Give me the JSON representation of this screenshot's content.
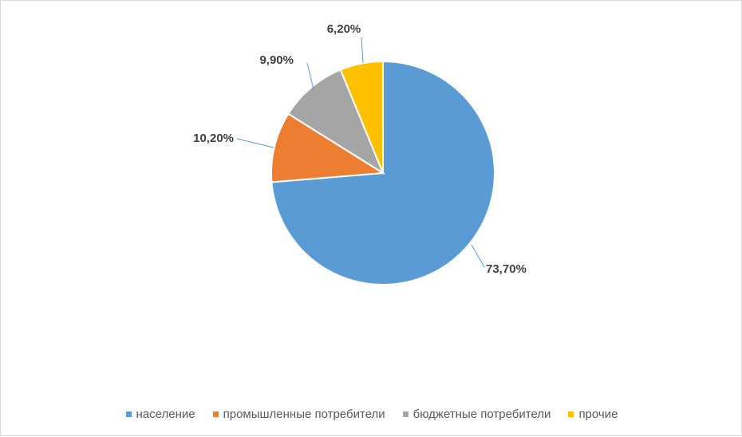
{
  "chart_data": {
    "type": "pie",
    "title": "",
    "slices": [
      {
        "label": "население",
        "value": 73.7,
        "display": "73,70%",
        "color": "#5b9bd5"
      },
      {
        "label": "промышленные потребители",
        "value": 10.2,
        "display": "10,20%",
        "color": "#ed7d31"
      },
      {
        "label": "бюджетные потребители",
        "value": 9.9,
        "display": "9,90%",
        "color": "#a5a5a5"
      },
      {
        "label": "прочие",
        "value": 6.2,
        "display": "6,20%",
        "color": "#ffc000"
      }
    ],
    "legend_position": "bottom",
    "start_angle": "12 o'clock",
    "direction": "clockwise"
  }
}
